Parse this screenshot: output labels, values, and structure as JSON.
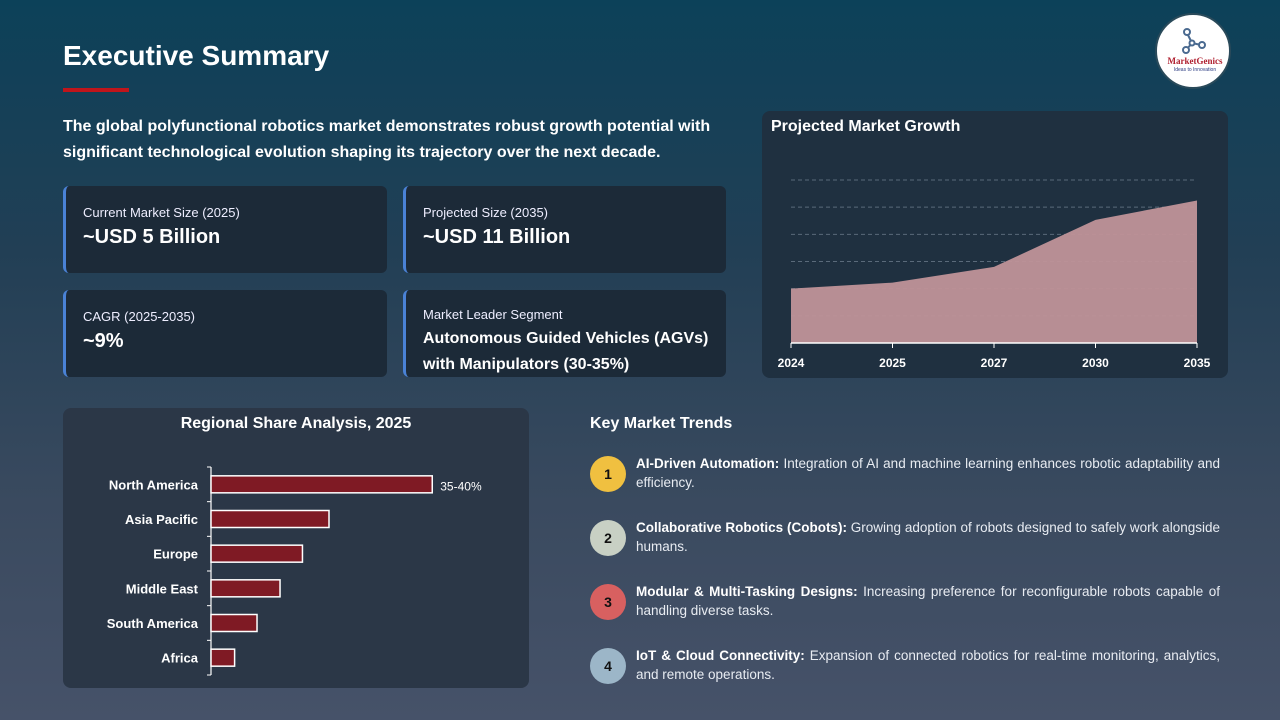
{
  "header": {
    "title": "Executive Summary",
    "intro": "The global polyfunctional robotics market demonstrates robust growth potential with significant technological evolution shaping its trajectory over the next decade.",
    "logo_text": "MarketGenics",
    "logo_tagline": "Ideas to Innovation"
  },
  "cards": [
    {
      "label": "Current Market Size (2025)",
      "value": "~USD 5 Billion"
    },
    {
      "label": "Projected Size (2035)",
      "value": "~USD 11 Billion"
    },
    {
      "label": "CAGR (2025-2035)",
      "value": "~9%"
    },
    {
      "label": "Market Leader Segment",
      "value": "Autonomous Guided Vehicles (AGVs) with Manipulators (30-35%)"
    }
  ],
  "colors": {
    "accent_red": "#c0151b",
    "card_border": "#4a82d6",
    "area_fill": "#c09499",
    "bar_fill": "#7f1a24"
  },
  "trends_title": "Key Market Trends",
  "trends": [
    {
      "num": "1",
      "title": "AI-Driven Automation:",
      "text": " Integration of AI and machine learning enhances robotic adaptability and efficiency.",
      "color": "#f0c040"
    },
    {
      "num": "2",
      "title": "Collaborative Robotics (Cobots):",
      "text": " Growing adoption of robots designed to safely work alongside humans.",
      "color": "#c8d0c4"
    },
    {
      "num": "3",
      "title": "Modular & Multi-Tasking Designs:",
      "text": " Increasing preference for reconfigurable robots capable of handling diverse tasks.",
      "color": "#d86060"
    },
    {
      "num": "4",
      "title": "IoT & Cloud Connectivity:",
      "text": " Expansion of connected robotics for real-time monitoring, analytics, and remote operations.",
      "color": "#9cb6c8"
    }
  ],
  "chart_data": [
    {
      "type": "area",
      "title": "Projected Market Growth",
      "categories": [
        "2024",
        "2025",
        "2027",
        "2030",
        "2035"
      ],
      "values": [
        4.5,
        5,
        6.3,
        10.2,
        11.8
      ],
      "ylim": [
        0,
        13.5
      ],
      "grid": true
    },
    {
      "type": "bar",
      "orientation": "horizontal",
      "title": "Regional Share Analysis, 2025",
      "categories": [
        "North America",
        "Asia Pacific",
        "Europe",
        "Middle East",
        "South America",
        "Africa"
      ],
      "values": [
        37.5,
        20,
        15.5,
        11.7,
        7.8,
        4
      ],
      "data_labels": [
        "35-40%",
        "",
        "",
        "",
        "",
        ""
      ],
      "grid": false
    }
  ]
}
